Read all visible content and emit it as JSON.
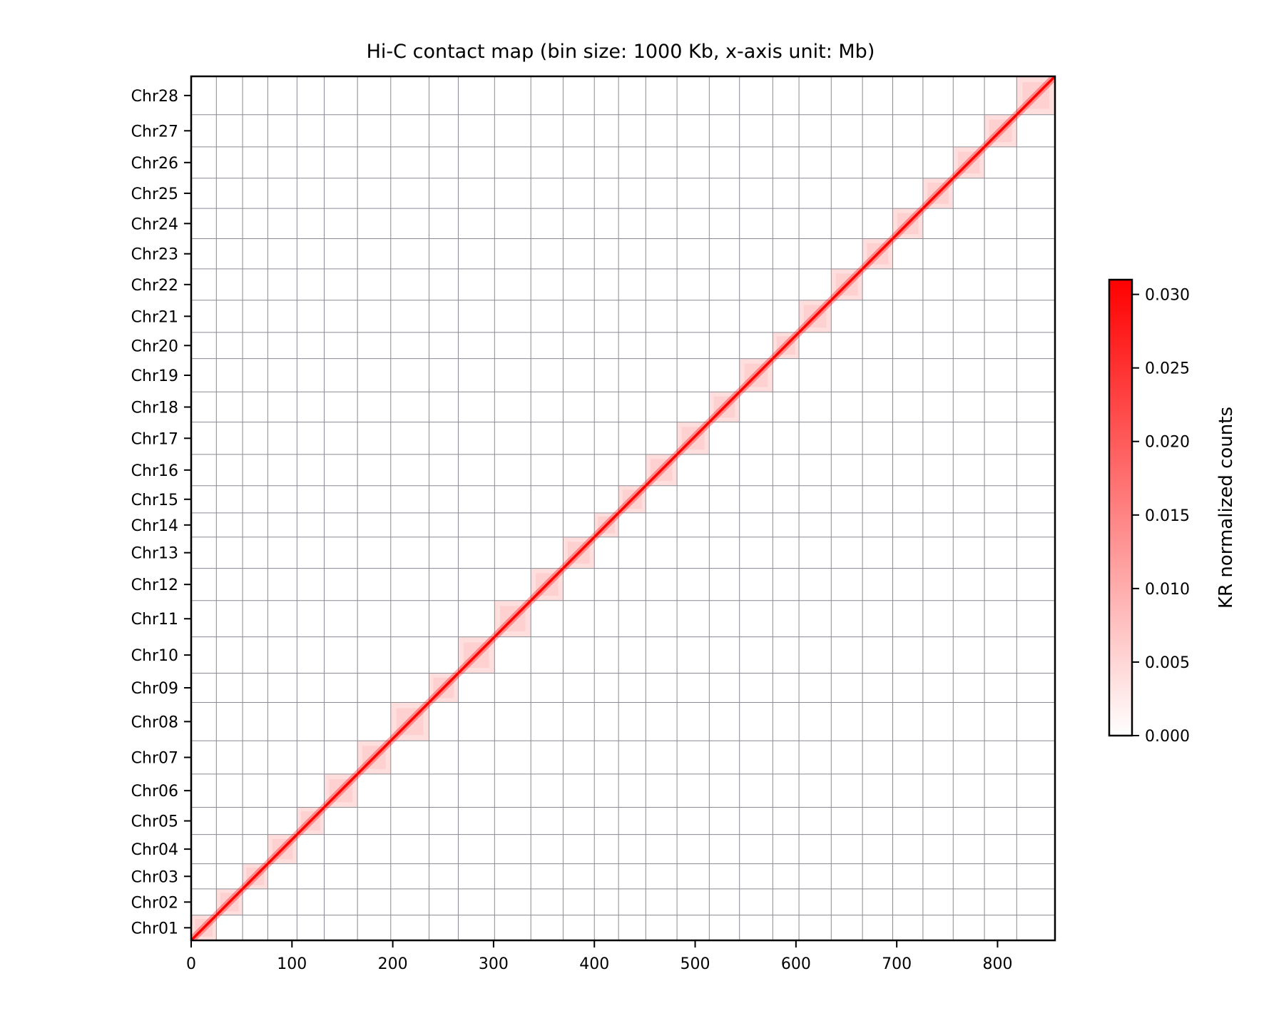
{
  "chart_data": {
    "type": "heatmap",
    "title": "Hi-C contact map (bin size: 1000 Kb, x-axis unit: Mb)",
    "x_ticks": [
      0,
      100,
      200,
      300,
      400,
      500,
      600,
      700,
      800
    ],
    "xlim": [
      0,
      857
    ],
    "ylim": [
      0,
      857
    ],
    "grid": true,
    "chromosomes": [
      {
        "name": "Chr01",
        "start": 0,
        "end": 25
      },
      {
        "name": "Chr02",
        "start": 25,
        "end": 51
      },
      {
        "name": "Chr03",
        "start": 51,
        "end": 76
      },
      {
        "name": "Chr04",
        "start": 76,
        "end": 105
      },
      {
        "name": "Chr05",
        "start": 105,
        "end": 132
      },
      {
        "name": "Chr06",
        "start": 132,
        "end": 165
      },
      {
        "name": "Chr07",
        "start": 165,
        "end": 198
      },
      {
        "name": "Chr08",
        "start": 198,
        "end": 236
      },
      {
        "name": "Chr09",
        "start": 236,
        "end": 265
      },
      {
        "name": "Chr10",
        "start": 265,
        "end": 301
      },
      {
        "name": "Chr11",
        "start": 301,
        "end": 337
      },
      {
        "name": "Chr12",
        "start": 337,
        "end": 369
      },
      {
        "name": "Chr13",
        "start": 369,
        "end": 400
      },
      {
        "name": "Chr14",
        "start": 400,
        "end": 424
      },
      {
        "name": "Chr15",
        "start": 424,
        "end": 451
      },
      {
        "name": "Chr16",
        "start": 451,
        "end": 482
      },
      {
        "name": "Chr17",
        "start": 482,
        "end": 514
      },
      {
        "name": "Chr18",
        "start": 514,
        "end": 544
      },
      {
        "name": "Chr19",
        "start": 544,
        "end": 577
      },
      {
        "name": "Chr20",
        "start": 577,
        "end": 603
      },
      {
        "name": "Chr21",
        "start": 603,
        "end": 635
      },
      {
        "name": "Chr22",
        "start": 635,
        "end": 666
      },
      {
        "name": "Chr23",
        "start": 666,
        "end": 696
      },
      {
        "name": "Chr24",
        "start": 696,
        "end": 726
      },
      {
        "name": "Chr25",
        "start": 726,
        "end": 756
      },
      {
        "name": "Chr26",
        "start": 756,
        "end": 787
      },
      {
        "name": "Chr27",
        "start": 787,
        "end": 819
      },
      {
        "name": "Chr28",
        "start": 819,
        "end": 857
      }
    ],
    "colorbar": {
      "label": "KR normalized counts",
      "min": 0.0,
      "max": 0.031,
      "ticks": [
        "0.000",
        "0.005",
        "0.010",
        "0.015",
        "0.020",
        "0.025",
        "0.030"
      ],
      "tick_values": [
        0.0,
        0.005,
        0.01,
        0.015,
        0.02,
        0.025,
        0.03
      ],
      "color_low": "#ffffff",
      "color_high": "#ff0000"
    },
    "diagonal_color": "#ff0000",
    "grid_color": "#8a8a93"
  }
}
